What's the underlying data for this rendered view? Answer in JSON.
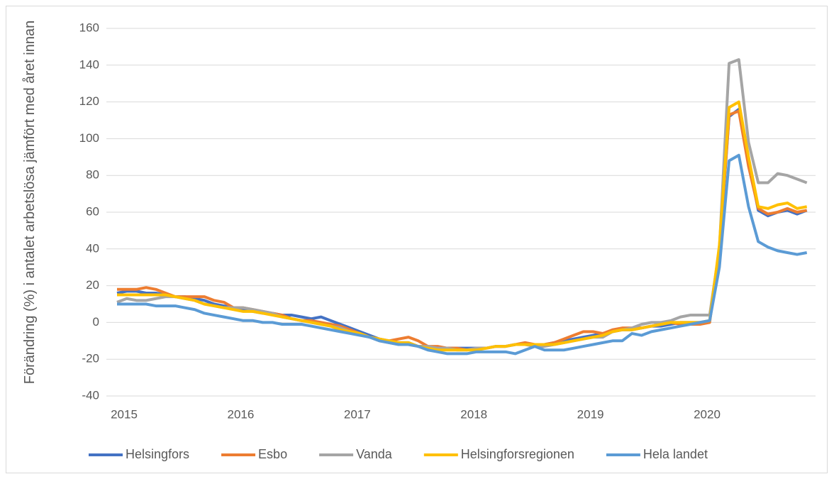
{
  "chart_data": {
    "type": "line",
    "y_label": "Förändring (%) i antalet arbetslösa jämfört med året innan",
    "categories": [
      "2015",
      null,
      null,
      null,
      null,
      null,
      null,
      null,
      null,
      null,
      null,
      null,
      "2016",
      null,
      null,
      null,
      null,
      null,
      null,
      null,
      null,
      null,
      null,
      null,
      "2017",
      null,
      null,
      null,
      null,
      null,
      null,
      null,
      null,
      null,
      null,
      null,
      "2018",
      null,
      null,
      null,
      null,
      null,
      null,
      null,
      null,
      null,
      null,
      null,
      "2019",
      null,
      null,
      null,
      null,
      null,
      null,
      null,
      null,
      null,
      null,
      null,
      "2020",
      null,
      null,
      null,
      null,
      null,
      null,
      null,
      null,
      null,
      null,
      null
    ],
    "ylim": [
      -40,
      160
    ],
    "yticks": [
      -40,
      -20,
      0,
      20,
      40,
      60,
      80,
      100,
      120,
      140,
      160
    ],
    "grid": true,
    "legend": "bottom",
    "series": [
      {
        "name": "Helsingfors",
        "color": "#4472c4",
        "values": [
          16,
          17,
          17,
          16,
          16,
          15,
          14,
          14,
          13,
          12,
          10,
          9,
          8,
          7,
          6,
          5,
          5,
          4,
          4,
          3,
          2,
          3,
          1,
          -1,
          -3,
          -5,
          -7,
          -9,
          -10,
          -11,
          -11,
          -13,
          -13,
          -14,
          -14,
          -14,
          -14,
          -14,
          -14,
          -13,
          -13,
          -12,
          -12,
          -12,
          -12,
          -11,
          -10,
          -9,
          -8,
          -7,
          -6,
          -5,
          -4,
          -4,
          -3,
          -2,
          -2,
          -1,
          0,
          0,
          0,
          1,
          40,
          112,
          116,
          88,
          61,
          58,
          60,
          61,
          59,
          61
        ]
      },
      {
        "name": "Esbo",
        "color": "#ed7d31",
        "values": [
          18,
          18,
          18,
          19,
          18,
          16,
          14,
          14,
          14,
          14,
          12,
          11,
          8,
          8,
          7,
          6,
          5,
          4,
          2,
          1,
          1,
          0,
          -1,
          -2,
          -4,
          -6,
          -8,
          -9,
          -10,
          -9,
          -8,
          -10,
          -13,
          -13,
          -14,
          -14,
          -15,
          -14,
          -14,
          -13,
          -13,
          -12,
          -11,
          -12,
          -12,
          -11,
          -9,
          -7,
          -5,
          -5,
          -6,
          -4,
          -3,
          -3,
          -3,
          -2,
          -1,
          0,
          -1,
          -1,
          -1,
          0,
          40,
          113,
          115,
          85,
          62,
          59,
          60,
          62,
          60,
          61
        ]
      },
      {
        "name": "Vanda",
        "color": "#a5a5a5",
        "values": [
          11,
          13,
          12,
          12,
          13,
          14,
          14,
          13,
          12,
          10,
          9,
          8,
          8,
          8,
          7,
          6,
          5,
          3,
          2,
          1,
          0,
          -1,
          -2,
          -3,
          -5,
          -6,
          -8,
          -10,
          -11,
          -12,
          -12,
          -13,
          -13,
          -14,
          -14,
          -15,
          -15,
          -14,
          -14,
          -13,
          -13,
          -12,
          -12,
          -13,
          -13,
          -12,
          -11,
          -10,
          -9,
          -8,
          -8,
          -5,
          -4,
          -3,
          -1,
          0,
          0,
          1,
          3,
          4,
          4,
          4,
          40,
          141,
          143,
          98,
          76,
          76,
          81,
          80,
          78,
          76
        ]
      },
      {
        "name": "Helsingforsregionen",
        "color": "#ffc000",
        "values": [
          15,
          15,
          15,
          15,
          15,
          15,
          14,
          13,
          12,
          10,
          9,
          8,
          7,
          6,
          6,
          5,
          4,
          3,
          2,
          1,
          0,
          -1,
          -2,
          -4,
          -5,
          -6,
          -8,
          -9,
          -10,
          -11,
          -11,
          -13,
          -14,
          -15,
          -15,
          -15,
          -15,
          -15,
          -14,
          -13,
          -13,
          -12,
          -12,
          -12,
          -12,
          -12,
          -11,
          -10,
          -9,
          -8,
          -7,
          -5,
          -4,
          -4,
          -3,
          -2,
          -1,
          0,
          0,
          0,
          0,
          1,
          42,
          117,
          120,
          90,
          63,
          62,
          64,
          65,
          62,
          63
        ]
      },
      {
        "name": "Hela landet",
        "color": "#5b9bd5",
        "values": [
          10,
          10,
          10,
          10,
          9,
          9,
          9,
          8,
          7,
          5,
          4,
          3,
          2,
          1,
          1,
          0,
          0,
          -1,
          -1,
          -1,
          -2,
          -3,
          -4,
          -5,
          -6,
          -7,
          -8,
          -10,
          -11,
          -12,
          -12,
          -13,
          -15,
          -16,
          -17,
          -17,
          -17,
          -16,
          -16,
          -16,
          -16,
          -17,
          -15,
          -13,
          -15,
          -15,
          -15,
          -14,
          -13,
          -12,
          -11,
          -10,
          -10,
          -6,
          -7,
          -5,
          -4,
          -3,
          -2,
          -1,
          0,
          1,
          30,
          88,
          91,
          63,
          44,
          41,
          39,
          38,
          37,
          38
        ]
      }
    ]
  }
}
